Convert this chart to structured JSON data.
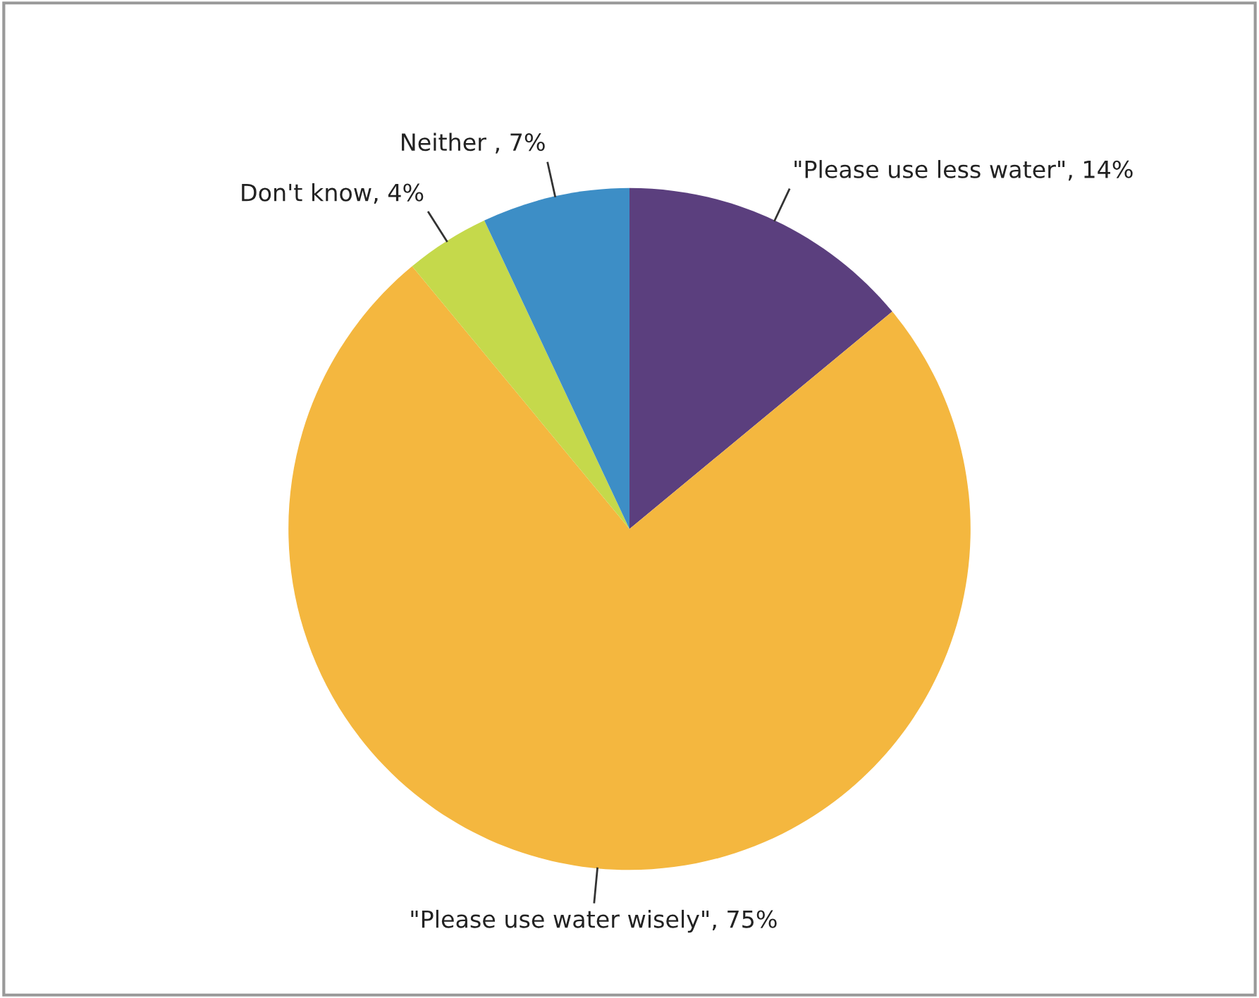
{
  "chart_data": {
    "type": "pie",
    "categories": [
      "\"Please use less water\"",
      "\"Please use water wisely\"",
      "Don't know",
      "Neither "
    ],
    "values": [
      14,
      75,
      4,
      7
    ],
    "value_labels": [
      "14%",
      "75%",
      "4%",
      "7%"
    ],
    "colors": [
      "#5b3f7e",
      "#f4b73f",
      "#c5d94b",
      "#3d8ec6"
    ],
    "legend": false
  }
}
